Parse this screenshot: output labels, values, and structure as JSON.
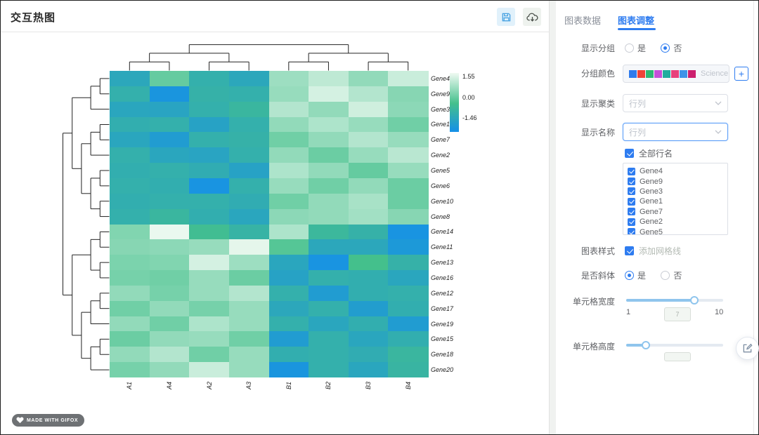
{
  "header": {
    "title": "交互热图"
  },
  "badge": {
    "text": "MADE WITH GIFOX"
  },
  "theme": {
    "accent": "#2e7cf0",
    "slider_fill": "#8fc5ed"
  },
  "sidebar": {
    "tabs": [
      {
        "label": "图表数据",
        "active": false
      },
      {
        "label": "图表调整",
        "active": true
      }
    ],
    "show_group": {
      "label": "显示分组",
      "options": [
        "是",
        "否"
      ],
      "selected": "否"
    },
    "group_color": {
      "label": "分组颜色",
      "palette_name": "Science",
      "swatches": [
        "#2f7bed",
        "#ef4438",
        "#2db873",
        "#c550d8",
        "#1fad9e",
        "#e8417c",
        "#3f93e8",
        "#cc1f6e"
      ]
    },
    "show_cluster": {
      "label": "显示聚类",
      "value": "行列"
    },
    "show_names": {
      "label": "显示名称",
      "value": "行列"
    },
    "all_row_names": {
      "label": "全部行名",
      "checked": true
    },
    "gene_list": [
      {
        "label": "Gene4",
        "checked": true
      },
      {
        "label": "Gene9",
        "checked": true
      },
      {
        "label": "Gene3",
        "checked": true
      },
      {
        "label": "Gene1",
        "checked": true
      },
      {
        "label": "Gene7",
        "checked": true
      },
      {
        "label": "Gene2",
        "checked": true
      },
      {
        "label": "Gene5",
        "checked": true
      }
    ],
    "chart_style": {
      "label": "图表样式",
      "option": "添加网格线",
      "checked": true
    },
    "italic": {
      "label": "是否斜体",
      "options": [
        "是",
        "否"
      ],
      "selected": "是"
    },
    "cell_width": {
      "label": "单元格宽度",
      "min": "1",
      "max": "10",
      "value": "7",
      "percent": 70
    },
    "cell_height": {
      "label": "单元格高度",
      "value": "",
      "percent": 20
    }
  },
  "chart_data": {
    "type": "heatmap",
    "title": "",
    "columns": [
      "A1",
      "A4",
      "A2",
      "A3",
      "B1",
      "B2",
      "B3",
      "B4"
    ],
    "rows": [
      "Gene4",
      "Gene9",
      "Gene3",
      "Gene1",
      "Gene7",
      "Gene2",
      "Gene5",
      "Gene6",
      "Gene10",
      "Gene8",
      "Gene14",
      "Gene11",
      "Gene13",
      "Gene16",
      "Gene12",
      "Gene17",
      "Gene19",
      "Gene15",
      "Gene18",
      "Gene20"
    ],
    "values": [
      [
        -0.75,
        0.3,
        -0.5,
        -0.75,
        0.8,
        1.1,
        0.7,
        1.2
      ],
      [
        -0.5,
        -1.3,
        -0.45,
        -0.5,
        0.75,
        1.3,
        1.0,
        0.6
      ],
      [
        -0.8,
        -0.85,
        -0.5,
        -0.3,
        1.0,
        0.7,
        1.25,
        0.65
      ],
      [
        -0.55,
        -0.5,
        -0.9,
        -0.5,
        0.7,
        0.95,
        0.75,
        0.4
      ],
      [
        -0.8,
        -1.1,
        -0.5,
        -0.45,
        0.4,
        0.7,
        1.0,
        0.75
      ],
      [
        -0.5,
        -0.8,
        -0.85,
        -0.5,
        0.7,
        0.35,
        0.75,
        1.05
      ],
      [
        -0.55,
        -0.5,
        -0.6,
        -0.9,
        0.95,
        0.7,
        0.3,
        0.75
      ],
      [
        -0.5,
        -0.55,
        -1.35,
        -0.5,
        0.75,
        0.4,
        0.7,
        0.35
      ],
      [
        -0.55,
        -0.5,
        -0.5,
        -0.6,
        0.4,
        0.7,
        0.9,
        0.35
      ],
      [
        -0.5,
        -0.3,
        -0.55,
        -0.8,
        0.65,
        0.7,
        0.85,
        0.6
      ],
      [
        0.55,
        1.5,
        -0.1,
        -0.4,
        0.95,
        -0.25,
        -0.45,
        -1.35
      ],
      [
        0.6,
        0.65,
        0.75,
        1.45,
        0.15,
        -0.75,
        -0.75,
        -1.2
      ],
      [
        0.5,
        0.55,
        1.3,
        0.8,
        -0.8,
        -1.35,
        0.0,
        -0.45
      ],
      [
        0.45,
        0.4,
        0.75,
        0.35,
        -0.9,
        -0.5,
        -0.55,
        -0.8
      ],
      [
        0.7,
        0.45,
        0.75,
        1.0,
        -0.5,
        -1.1,
        -0.55,
        -0.5
      ],
      [
        0.4,
        0.7,
        0.45,
        0.75,
        -0.75,
        -0.5,
        -1.05,
        -0.55
      ],
      [
        0.7,
        0.4,
        0.95,
        0.75,
        -0.5,
        -0.8,
        -0.55,
        -1.1
      ],
      [
        0.35,
        0.7,
        0.75,
        0.4,
        -1.1,
        -0.5,
        -0.8,
        -0.55
      ],
      [
        0.7,
        1.0,
        0.4,
        0.75,
        -0.55,
        -0.5,
        -0.6,
        -0.3
      ],
      [
        0.45,
        0.7,
        1.2,
        0.75,
        -1.3,
        -0.5,
        -0.8,
        -0.35
      ]
    ],
    "colorscale": {
      "min": -1.46,
      "mid": 0.0,
      "max": 1.55,
      "min_color": "#1590e8",
      "mid_color": "#44c08c",
      "max_color": "#f0faf2"
    },
    "legend_ticks": [
      "1.55",
      "0.00",
      "-1.46"
    ],
    "row_labels_italic": true,
    "col_dendrogram": [
      [
        [
          "A1",
          "A4"
        ],
        [
          "A2",
          "A3"
        ]
      ],
      [
        [
          "B1",
          "B2"
        ],
        [
          "B3",
          "B4"
        ]
      ]
    ],
    "row_dendrogram": [
      [
        [
          [
            "Gene4",
            "Gene9"
          ],
          "Gene3"
        ],
        [
          [
            [
              "Gene1",
              "Gene7"
            ],
            "Gene2"
          ],
          [
            [
              "Gene5",
              "Gene6"
            ],
            [
              "Gene10",
              "Gene8"
            ]
          ]
        ]
      ],
      [
        [
          [
            "Gene14",
            "Gene11"
          ],
          [
            "Gene13",
            "Gene16"
          ]
        ],
        [
          [
            [
              "Gene12",
              "Gene17"
            ],
            "Gene19"
          ],
          [
            [
              "Gene15",
              "Gene18"
            ],
            "Gene20"
          ]
        ]
      ]
    ]
  }
}
